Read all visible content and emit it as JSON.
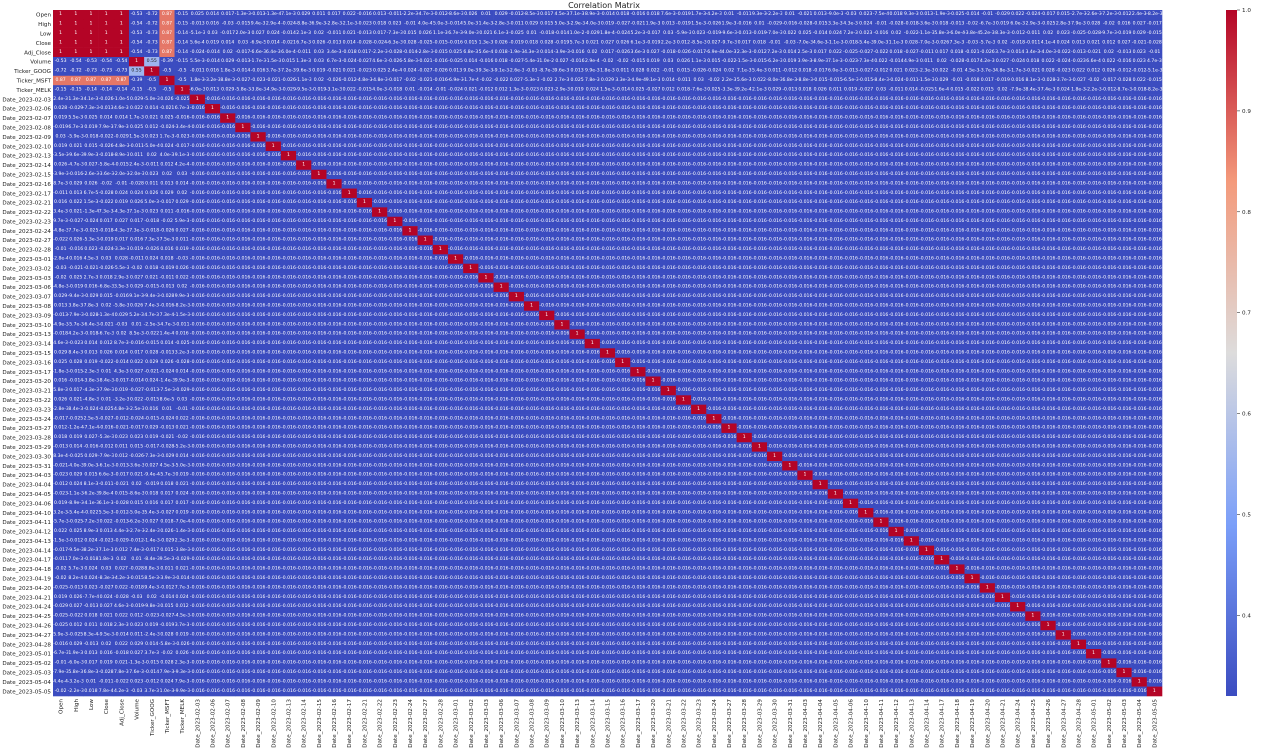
{
  "chart_data": {
    "type": "heatmap",
    "title": "Correlation Matrix",
    "xlabel": "",
    "ylabel": "",
    "colormap": "coolwarm",
    "colorbar": {
      "min": 0.32,
      "max": 1.0,
      "ticks": [
        1.0,
        0.9,
        0.8,
        0.7,
        0.6,
        0.5,
        0.4
      ]
    },
    "numeric_labels": [
      "Open",
      "High",
      "Low",
      "Close",
      "Adj_Close",
      "Volume",
      "Ticker_GOOG",
      "Ticker_MSFT",
      "Ticker_MELK"
    ],
    "date_labels": [
      "Date_2023-02-03",
      "Date_2023-02-06",
      "Date_2023-02-07",
      "Date_2023-02-08",
      "Date_2023-02-09",
      "Date_2023-02-10",
      "Date_2023-02-13",
      "Date_2023-02-14",
      "Date_2023-02-15",
      "Date_2023-02-16",
      "Date_2023-02-17",
      "Date_2023-02-21",
      "Date_2023-02-22",
      "Date_2023-02-23",
      "Date_2023-02-24",
      "Date_2023-02-27",
      "Date_2023-02-28",
      "Date_2023-03-01",
      "Date_2023-03-02",
      "Date_2023-03-03",
      "Date_2023-03-06",
      "Date_2023-03-07",
      "Date_2023-03-08",
      "Date_2023-03-09",
      "Date_2023-03-10",
      "Date_2023-03-13",
      "Date_2023-03-14",
      "Date_2023-03-15",
      "Date_2023-03-16",
      "Date_2023-03-17",
      "Date_2023-03-20",
      "Date_2023-03-21",
      "Date_2023-03-22",
      "Date_2023-03-23",
      "Date_2023-03-24",
      "Date_2023-03-27",
      "Date_2023-03-28",
      "Date_2023-03-29",
      "Date_2023-03-30",
      "Date_2023-03-31",
      "Date_2023-04-03",
      "Date_2023-04-04",
      "Date_2023-04-05",
      "Date_2023-04-06",
      "Date_2023-04-10",
      "Date_2023-04-11",
      "Date_2023-04-12",
      "Date_2023-04-13",
      "Date_2023-04-14",
      "Date_2023-04-17",
      "Date_2023-04-18",
      "Date_2023-04-19",
      "Date_2023-04-20",
      "Date_2023-04-21",
      "Date_2023-04-24",
      "Date_2023-04-25",
      "Date_2023-04-26",
      "Date_2023-04-27",
      "Date_2023-04-28",
      "Date_2023-05-01",
      "Date_2023-05-02",
      "Date_2023-05-03",
      "Date_2023-05-04",
      "Date_2023-05-05"
    ],
    "numeric_block": [
      [
        1,
        1,
        1,
        1,
        1,
        -0.53,
        -0.72,
        0.87,
        -0.15
      ],
      [
        1,
        1,
        1,
        1,
        1,
        -0.54,
        -0.72,
        0.87,
        -0.15
      ],
      [
        1,
        1,
        1,
        1,
        1,
        -0.53,
        -0.73,
        0.87,
        -0.14
      ],
      [
        1,
        1,
        1,
        1,
        1,
        -0.54,
        -0.73,
        0.87,
        -0.14
      ],
      [
        1,
        1,
        1,
        1,
        1,
        -0.54,
        -0.73,
        0.87,
        -0.14
      ],
      [
        -0.53,
        -0.54,
        -0.53,
        -0.54,
        -0.54,
        1,
        0.55,
        -0.39,
        -0.15
      ],
      [
        -0.72,
        -0.72,
        -0.73,
        -0.73,
        -0.73,
        0.55,
        1,
        -0.5,
        -0.5
      ],
      [
        0.87,
        0.87,
        0.87,
        0.87,
        0.87,
        -0.39,
        -0.5,
        1,
        -0.5
      ],
      [
        -0.15,
        -0.15,
        -0.14,
        -0.14,
        -0.14,
        -0.15,
        -0.5,
        -0.5,
        1
      ]
    ],
    "numeric_vs_date_range": [
      -0.03,
      0.03
    ],
    "date_vs_date_offdiagonal": -0.016,
    "diagonal": 1
  }
}
